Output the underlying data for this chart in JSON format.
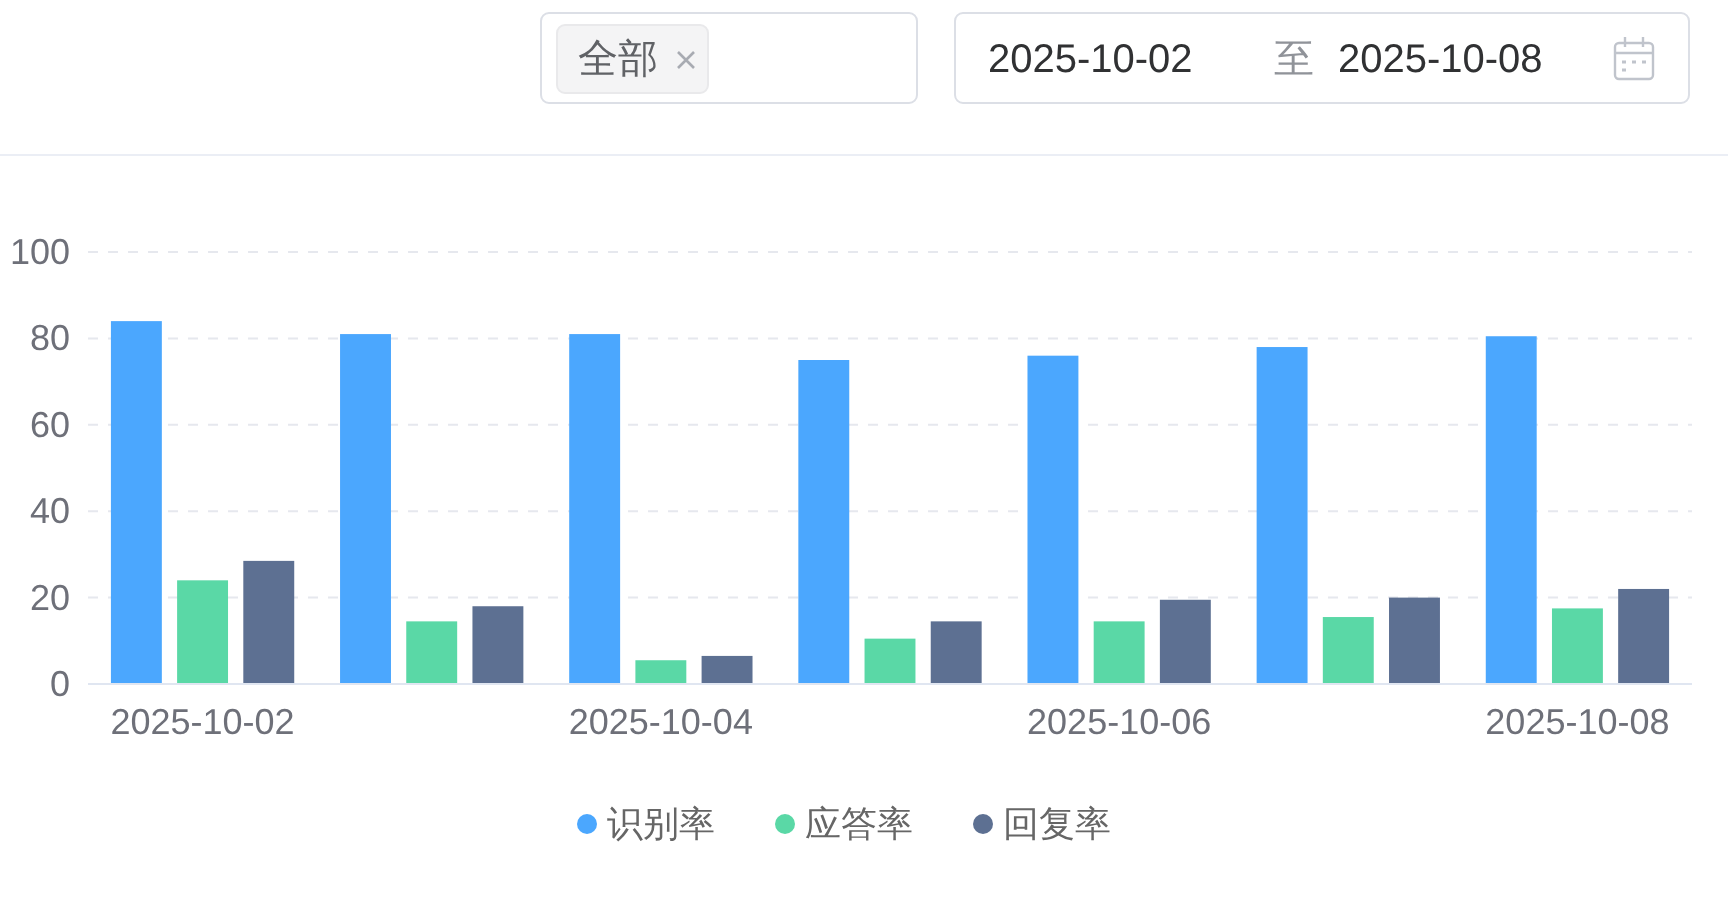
{
  "chart_data": {
    "type": "bar",
    "categories": [
      "2025-10-02",
      null,
      "2025-10-04",
      null,
      "2025-10-06",
      null,
      "2025-10-08"
    ],
    "series": [
      {
        "name": "识别率",
        "color": "#4ba7fe",
        "values": [
          84,
          81,
          81,
          75,
          76,
          78,
          80.5
        ]
      },
      {
        "name": "应答率",
        "color": "#5ad8a6",
        "values": [
          24,
          14.5,
          5.5,
          10.5,
          14.5,
          15.5,
          17.5
        ]
      },
      {
        "name": "回复率",
        "color": "#5d7092",
        "values": [
          28.5,
          18,
          6.5,
          14.5,
          19.5,
          20,
          22
        ]
      }
    ],
    "ylim": [
      0,
      100
    ],
    "yticks": [
      0,
      20,
      40,
      60,
      80,
      100
    ],
    "grid": "y",
    "legend": "bottom",
    "annotations": [
      "全部",
      "2025-10-02",
      "至",
      "2025-10-08"
    ]
  }
}
